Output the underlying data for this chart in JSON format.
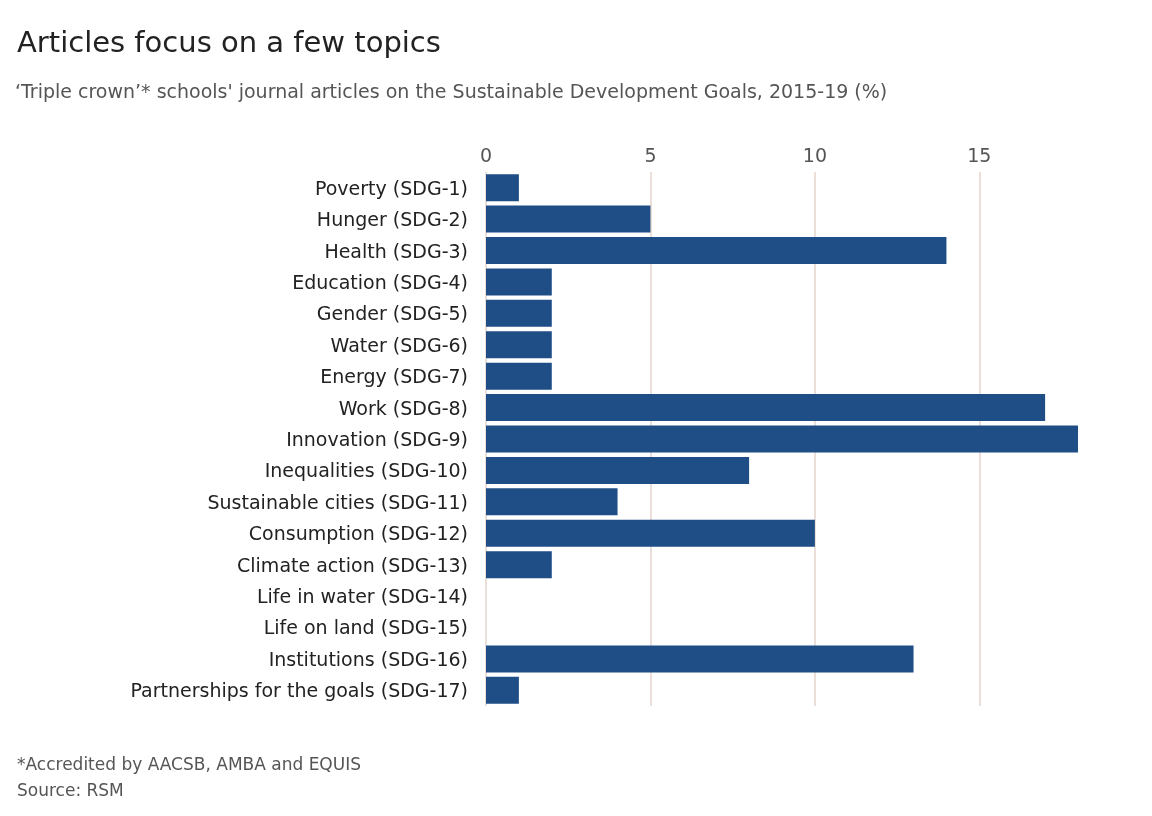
{
  "chart_data": {
    "type": "bar",
    "orientation": "horizontal",
    "title": "Articles focus on a few topics",
    "subtitle": "‘Triple crown’* schools' journal articles on the Sustainable Development Goals, 2015-19 (%)",
    "categories": [
      "Poverty (SDG-1)",
      "Hunger (SDG-2)",
      "Health (SDG-3)",
      "Education (SDG-4)",
      "Gender (SDG-5)",
      "Water (SDG-6)",
      "Energy (SDG-7)",
      "Work (SDG-8)",
      "Innovation (SDG-9)",
      "Inequalities (SDG-10)",
      "Sustainable cities (SDG-11)",
      "Consumption (SDG-12)",
      "Climate action (SDG-13)",
      "Life in water (SDG-14)",
      "Life on land (SDG-15)",
      "Institutions (SDG-16)",
      "Partnerships for the goals (SDG-17)"
    ],
    "values": [
      1,
      5,
      14,
      2,
      2,
      2,
      2,
      17,
      18,
      8,
      4,
      10,
      2,
      0,
      0,
      13,
      1
    ],
    "color": "#1f4e87",
    "xlim": [
      0,
      18
    ],
    "xticks": [
      0,
      5,
      10,
      15
    ],
    "grid": "x",
    "annotations": [
      "*Accredited by AACSB, AMBA and EQUIS",
      "Source: RSM"
    ]
  }
}
